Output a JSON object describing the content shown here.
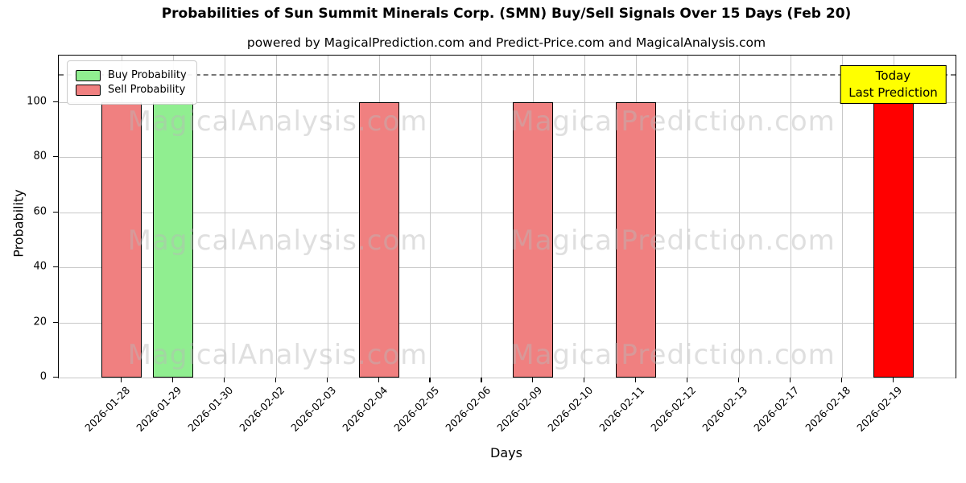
{
  "title": "Probabilities of Sun Summit Minerals Corp. (SMN) Buy/Sell Signals Over 15 Days (Feb 20)",
  "subtitle": "powered by MagicalPrediction.com and Predict-Price.com and MagicalAnalysis.com",
  "axes": {
    "xlabel": "Days",
    "ylabel": "Probability",
    "yticks": [
      0,
      20,
      40,
      60,
      80,
      100
    ]
  },
  "legend": {
    "items": [
      {
        "label": "Buy Probability",
        "color": "#90ee90"
      },
      {
        "label": "Sell Probability",
        "color": "#f08080"
      }
    ]
  },
  "annotation": {
    "line1": "Today",
    "line2": "Last Prediction"
  },
  "watermarks": {
    "left": "MagicalAnalysis.com",
    "right": "MagicalPrediction.com"
  },
  "colors": {
    "buy": "#90ee90",
    "sell": "#f08080",
    "today": "#ff0000",
    "bar_edge": "#000000",
    "grid": "#c8c8c8",
    "dashed_line": "#777777",
    "annotation_bg": "#ffff00"
  },
  "chart_data": {
    "type": "bar",
    "title": "Probabilities of Sun Summit Minerals Corp. (SMN) Buy/Sell Signals Over 15 Days (Feb 20)",
    "subtitle": "powered by MagicalPrediction.com and Predict-Price.com and MagicalAnalysis.com",
    "xlabel": "Days",
    "ylabel": "Probability",
    "categories": [
      "2026-01-28",
      "2026-01-29",
      "2026-01-30",
      "2026-02-02",
      "2026-02-03",
      "2026-02-04",
      "2026-02-05",
      "2026-02-06",
      "2026-02-09",
      "2026-02-10",
      "2026-02-11",
      "2026-02-12",
      "2026-02-13",
      "2026-02-17",
      "2026-02-18",
      "2026-02-19"
    ],
    "series": [
      {
        "name": "Buy Probability",
        "color": "#90ee90",
        "values": [
          0,
          100,
          0,
          0,
          0,
          0,
          0,
          0,
          0,
          0,
          0,
          0,
          0,
          0,
          0,
          0
        ]
      },
      {
        "name": "Sell Probability",
        "color": "#f08080",
        "values": [
          100,
          0,
          0,
          0,
          0,
          100,
          0,
          0,
          100,
          0,
          100,
          0,
          0,
          0,
          0,
          0
        ]
      },
      {
        "name": "Today (Last Prediction)",
        "color": "#ff0000",
        "values": [
          0,
          0,
          0,
          0,
          0,
          0,
          0,
          0,
          0,
          0,
          0,
          0,
          0,
          0,
          0,
          100
        ]
      }
    ],
    "ylim": [
      0,
      117
    ],
    "yticks": [
      0,
      20,
      40,
      60,
      80,
      100
    ],
    "dashed_line_y": 110,
    "grid": true,
    "legend_position": "upper left"
  }
}
